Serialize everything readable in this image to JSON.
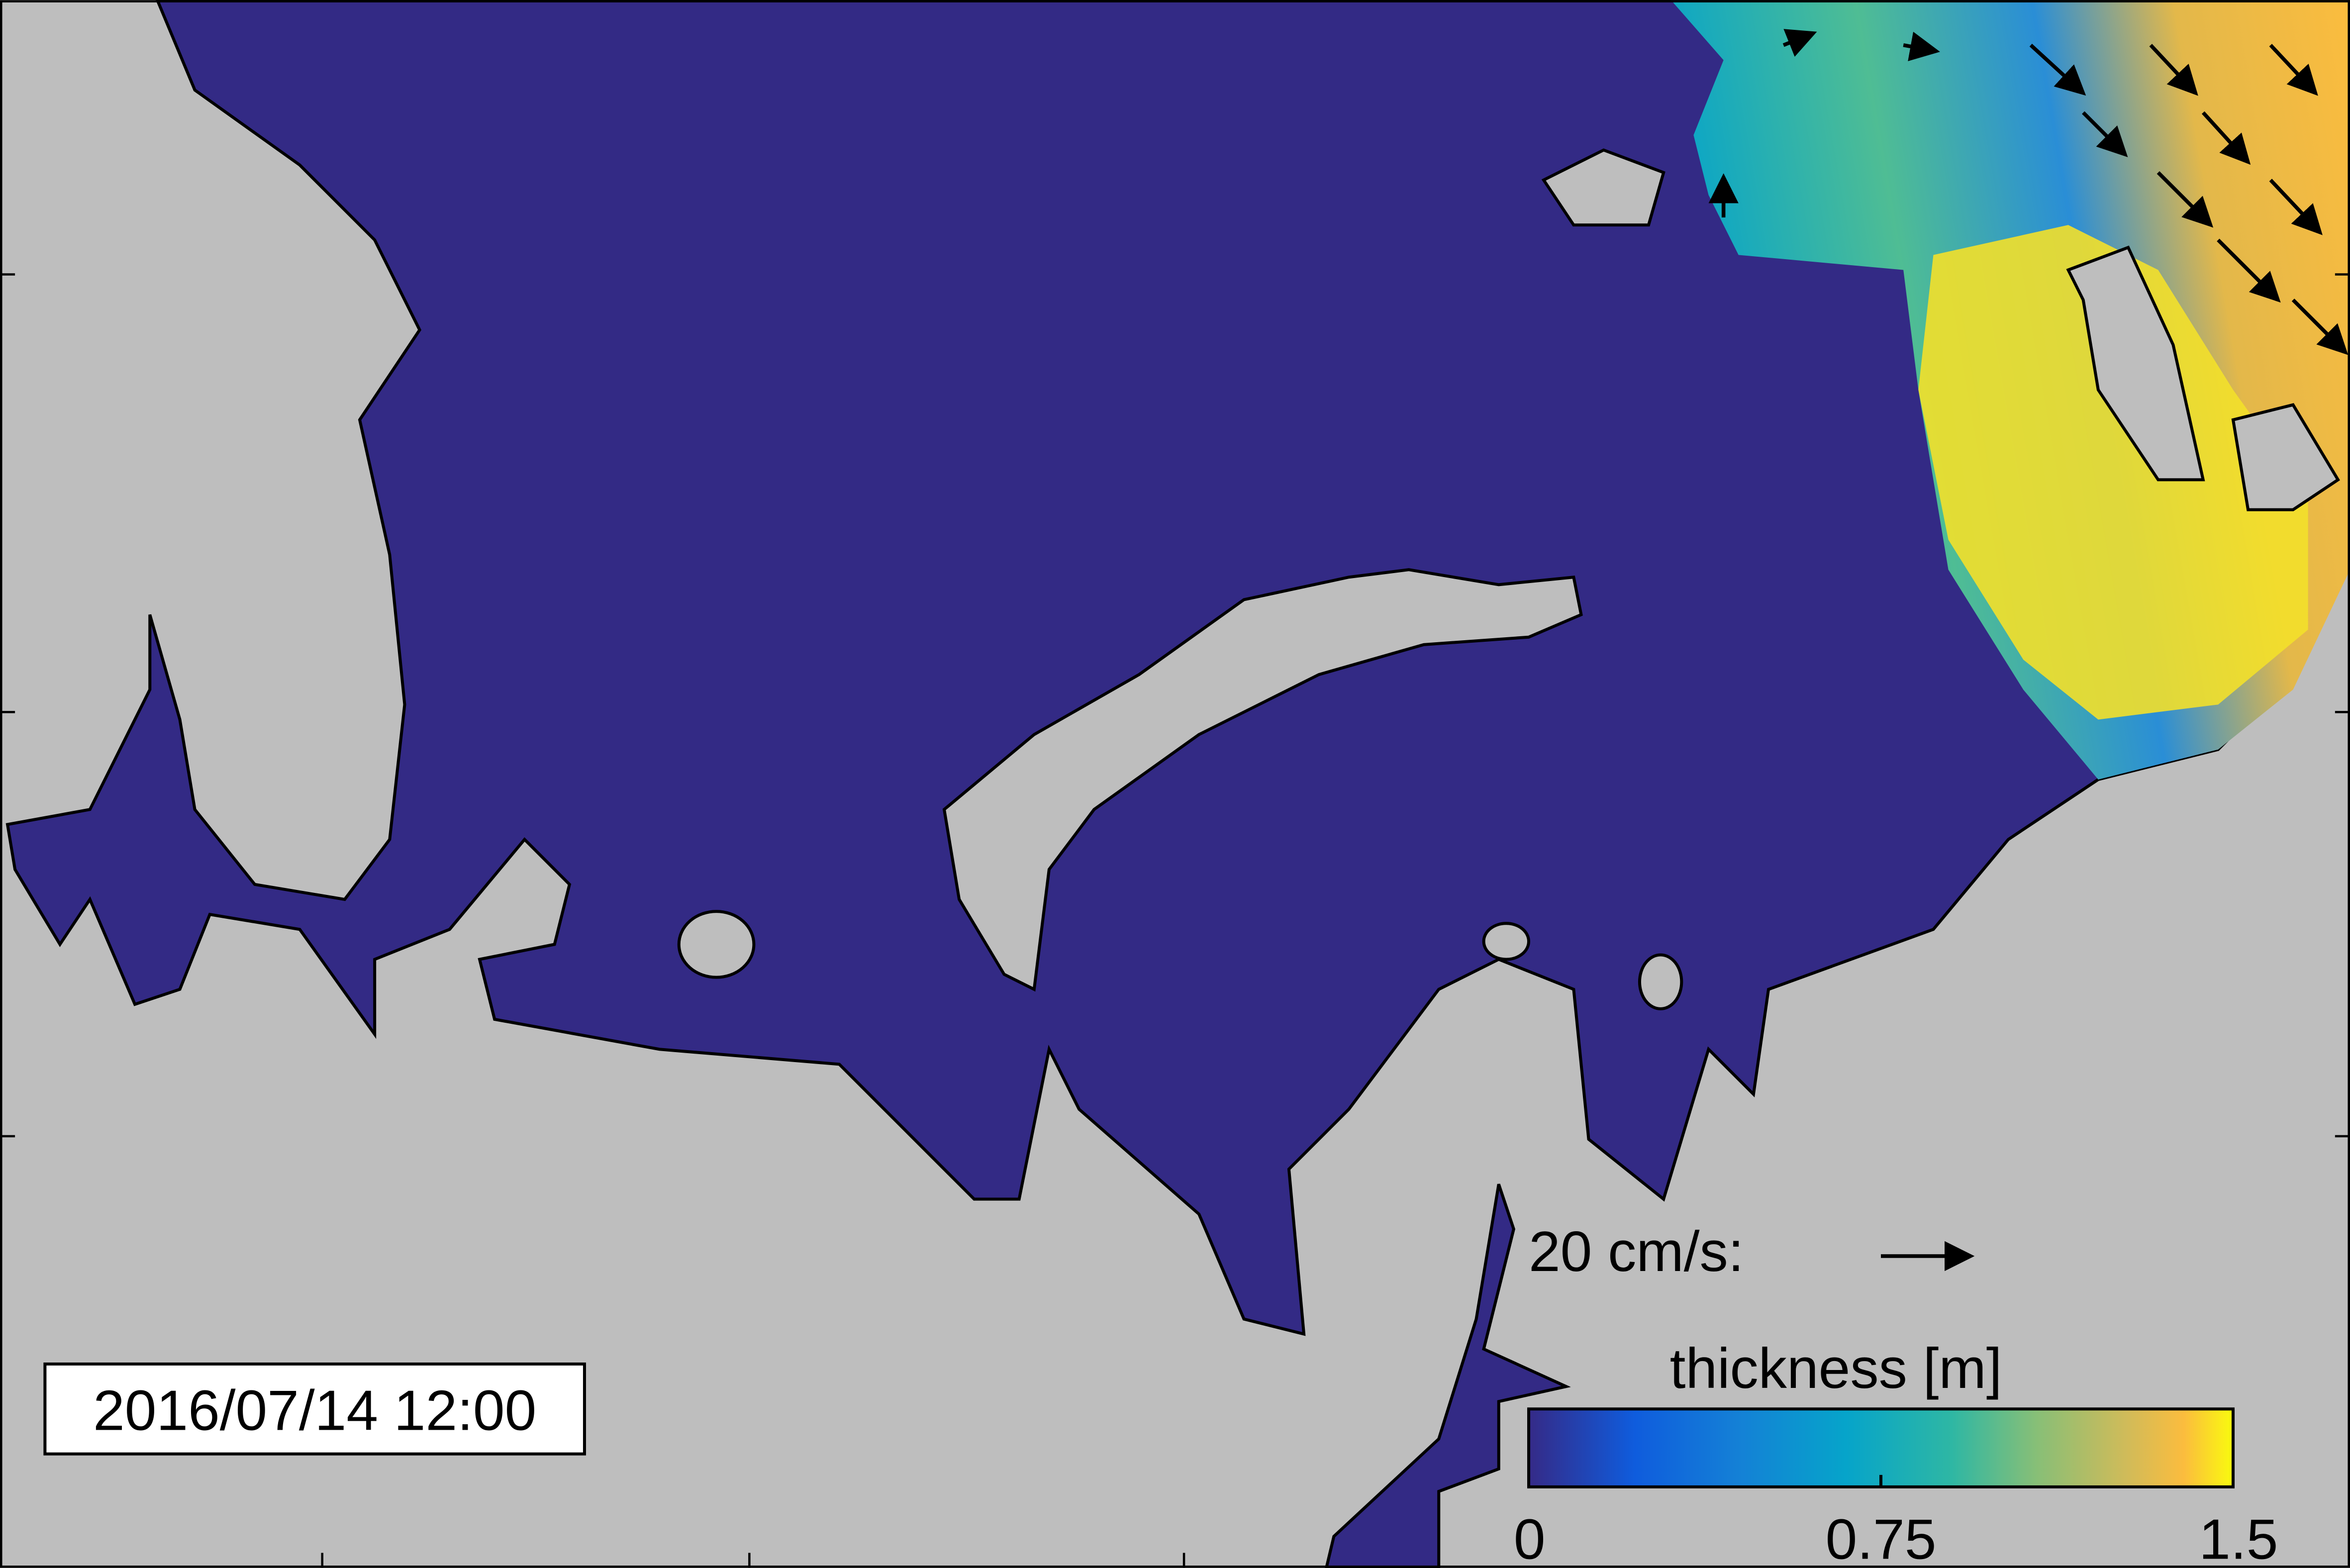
{
  "map": {
    "timestamp": "2016/07/14 12:00",
    "velocity_scale_label": "20 cm/s:",
    "colorbar": {
      "label": "thickness [m]",
      "lim": [
        0,
        1.5
      ],
      "ticks": [
        0,
        0.75,
        1.5
      ]
    }
  }
}
